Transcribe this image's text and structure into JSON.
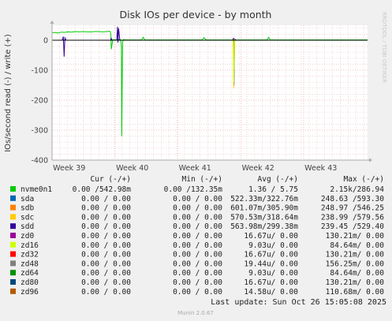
{
  "chart_data": {
    "type": "line",
    "title": "Disk IOs per device - by month",
    "ylabel": "IOs/second read (-) / write (+)",
    "side_label": "RRDTOOL / TOBI OETIKER",
    "ylim": [
      -400,
      50
    ],
    "y_ticks": [
      0,
      -100,
      -200,
      -300,
      -400
    ],
    "x_ticks": [
      {
        "label": "Week 39",
        "x": 2.2
      },
      {
        "label": "Week 40",
        "x": 10.3
      },
      {
        "label": "Week 41",
        "x": 18.35
      },
      {
        "label": "Week 42",
        "x": 26.45
      },
      {
        "label": "Week 43",
        "x": 34.5
      }
    ],
    "xlim": [
      0,
      40.5
    ],
    "grid": true,
    "series": [
      {
        "name": "nvme0n1",
        "color": "#00cc00",
        "x": [
          0,
          0.4,
          0.8,
          1.2,
          1.6,
          2.0,
          2.5,
          3.0,
          3.5,
          4.0,
          4.5,
          5.0,
          5.5,
          6.0,
          6.5,
          7.0,
          7.4,
          7.5,
          7.55,
          7.6,
          7.8,
          8.2,
          8.5,
          8.8,
          8.9,
          8.95,
          9.05,
          9.15,
          9.5,
          10.0,
          11.5,
          11.7,
          11.9,
          13.2,
          19.3,
          19.5,
          19.8,
          20.5,
          27.6,
          27.8,
          28.0,
          40.5
        ],
        "y": [
          25,
          26,
          24,
          27,
          26,
          28,
          27,
          29,
          28,
          29,
          28,
          28,
          29,
          29,
          28,
          29,
          30,
          26,
          12,
          -30,
          2,
          1,
          3,
          2,
          -20,
          -320,
          -5,
          2,
          1,
          1,
          1,
          10,
          1,
          1,
          1,
          9,
          1,
          1,
          1,
          10,
          1,
          1
        ]
      },
      {
        "name": "sdd",
        "color": "#330099",
        "x": [
          0,
          1.3,
          1.45,
          1.55,
          1.65,
          1.8,
          7.5,
          7.6,
          7.7,
          8.3,
          8.4,
          8.45,
          8.55,
          8.7,
          23.2,
          23.3,
          23.35,
          23.45,
          23.6,
          40.5
        ],
        "y": [
          0,
          0,
          12,
          -55,
          8,
          0,
          0,
          6,
          0,
          0,
          45,
          -8,
          40,
          0,
          0,
          8,
          -150,
          4,
          0,
          0
        ]
      },
      {
        "name": "sdc",
        "color": "#ffcc00",
        "x": [
          0,
          23.25,
          23.32,
          23.38,
          23.5,
          40.5
        ],
        "y": [
          0,
          0,
          -160,
          3,
          0,
          0
        ]
      },
      {
        "name": "zd16",
        "color": "#ccff00",
        "x": [
          0,
          23.25,
          23.33,
          23.45,
          40.5
        ],
        "y": [
          0,
          0,
          -140,
          0,
          0
        ]
      }
    ],
    "table_header": {
      "cur": "Cur (-/+)",
      "min": "Min (-/+)",
      "avg": "Avg (-/+)",
      "max": "Max (-/+)"
    },
    "legend": [
      {
        "name": "nvme0n1",
        "color": "#00cc00",
        "cur": "0.00 /542.98m",
        "min": "0.00 /132.35m",
        "avg": "1.36 /  5.75",
        "max": "2.15k/286.94"
      },
      {
        "name": "sda",
        "color": "#0066b3",
        "cur": "0.00 /  0.00",
        "min": "0.00 /  0.00",
        "avg": "522.33m/322.76m",
        "max": "248.63 /593.30"
      },
      {
        "name": "sdb",
        "color": "#ff8000",
        "cur": "0.00 /  0.00",
        "min": "0.00 /  0.00",
        "avg": "601.07m/305.90m",
        "max": "248.97 /546.25"
      },
      {
        "name": "sdc",
        "color": "#ffcc00",
        "cur": "0.00 /  0.00",
        "min": "0.00 /  0.00",
        "avg": "570.53m/318.64m",
        "max": "238.99 /579.56"
      },
      {
        "name": "sdd",
        "color": "#330099",
        "cur": "0.00 /  0.00",
        "min": "0.00 /  0.00",
        "avg": "563.98m/299.38m",
        "max": "239.45 /529.40"
      },
      {
        "name": "zd0",
        "color": "#990099",
        "cur": "0.00 /  0.00",
        "min": "0.00 /  0.00",
        "avg": "16.67u/  0.00",
        "max": "130.21m/  0.00"
      },
      {
        "name": "zd16",
        "color": "#ccff00",
        "cur": "0.00 /  0.00",
        "min": "0.00 /  0.00",
        "avg": "9.03u/  0.00",
        "max": "84.64m/  0.00"
      },
      {
        "name": "zd32",
        "color": "#ff0000",
        "cur": "0.00 /  0.00",
        "min": "0.00 /  0.00",
        "avg": "16.67u/  0.00",
        "max": "130.21m/  0.00"
      },
      {
        "name": "zd48",
        "color": "#808080",
        "cur": "0.00 /  0.00",
        "min": "0.00 /  0.00",
        "avg": "19.44u/  0.00",
        "max": "156.25m/  0.00"
      },
      {
        "name": "zd64",
        "color": "#008f00",
        "cur": "0.00 /  0.00",
        "min": "0.00 /  0.00",
        "avg": "9.03u/  0.00",
        "max": "84.64m/  0.00"
      },
      {
        "name": "zd80",
        "color": "#00487d",
        "cur": "0.00 /  0.00",
        "min": "0.00 /  0.00",
        "avg": "16.67u/  0.00",
        "max": "130.21m/  0.00"
      },
      {
        "name": "zd96",
        "color": "#b35a00",
        "cur": "0.00 /  0.00",
        "min": "0.00 /  0.00",
        "avg": "14.58u/  0.00",
        "max": "110.68m/  0.00"
      }
    ],
    "last_update": "Last update: Sun Oct 26 15:05:08 2025",
    "footer": "Munin 2.0.67"
  }
}
